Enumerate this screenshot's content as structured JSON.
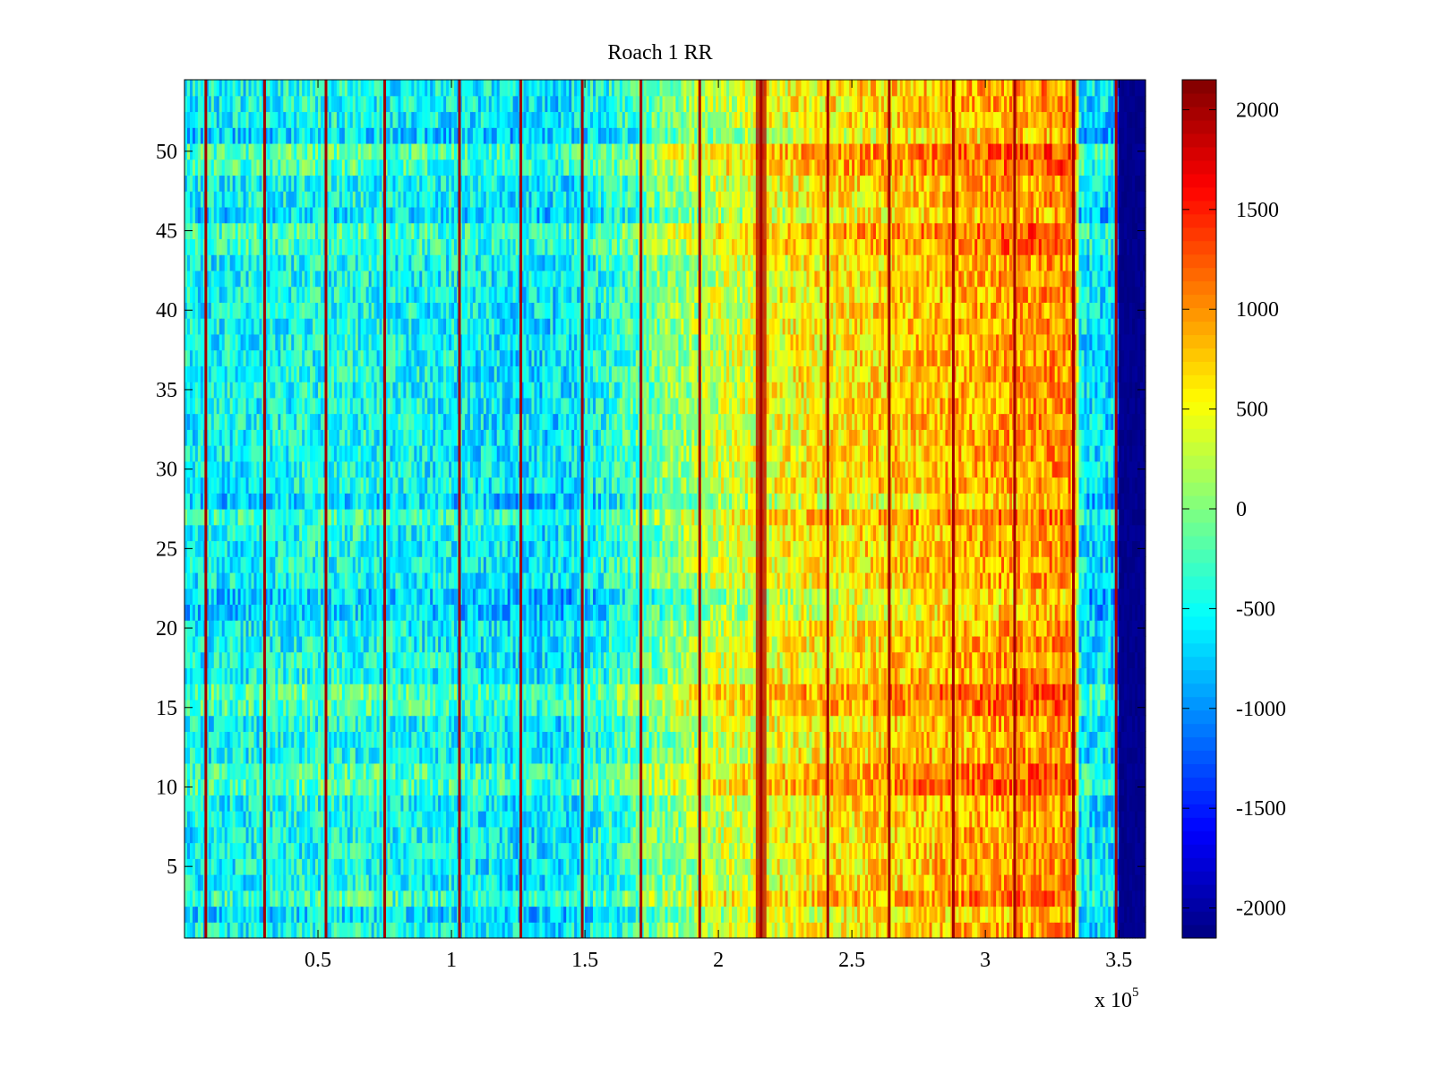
{
  "chart_data": {
    "type": "heatmap",
    "title": "Roach 1 RR",
    "xlabel": "",
    "ylabel": "",
    "x_multiplier_label": "x 10",
    "x_multiplier_exponent": "5",
    "xlim": [
      0,
      3.6
    ],
    "ylim": [
      0.5,
      54.5
    ],
    "x_ticks": [
      0.5,
      1,
      1.5,
      2,
      2.5,
      3,
      3.5
    ],
    "x_tick_labels": [
      "0.5",
      "1",
      "1.5",
      "2",
      "2.5",
      "3",
      "3.5"
    ],
    "y_ticks": [
      5,
      10,
      15,
      20,
      25,
      30,
      35,
      40,
      45,
      50
    ],
    "y_tick_labels": [
      "5",
      "10",
      "15",
      "20",
      "25",
      "30",
      "35",
      "40",
      "45",
      "50"
    ],
    "rows": 54,
    "colormap": "jet",
    "colorbar": {
      "clim": [
        -2150,
        2150
      ],
      "ticks": [
        -2000,
        -1500,
        -1000,
        -500,
        0,
        500,
        1000,
        1500,
        2000
      ],
      "tick_labels": [
        "-2000",
        "-1500",
        "-1000",
        "-500",
        "0",
        "500",
        "1000",
        "1500",
        "2000"
      ],
      "location": "right"
    },
    "column_mean_profile": {
      "x": [
        0,
        0.3,
        0.6,
        0.9,
        1.2,
        1.4,
        1.6,
        1.75,
        2.0,
        2.3,
        2.6,
        2.9,
        3.2,
        3.34,
        3.35,
        3.49,
        3.5,
        3.6
      ],
      "mean": [
        -550,
        -500,
        -450,
        -520,
        -600,
        -650,
        -400,
        -100,
        300,
        550,
        700,
        850,
        1000,
        1000,
        -600,
        -700,
        -2150,
        -2150
      ],
      "noise_amplitude": 450
    },
    "row_offsets": {
      "rows": [
        2,
        3,
        10,
        11,
        15,
        16,
        21,
        22,
        27,
        28,
        44,
        45,
        46,
        49,
        50,
        51
      ],
      "offsets": [
        -150,
        200,
        300,
        250,
        250,
        350,
        -200,
        -250,
        200,
        -200,
        200,
        250,
        -150,
        250,
        300,
        -200
      ]
    },
    "spike_columns": [
      0.08,
      0.3,
      0.53,
      0.75,
      1.03,
      1.26,
      1.49,
      1.71,
      1.93,
      2.16,
      2.41,
      2.64,
      2.88,
      3.11,
      3.33,
      3.49
    ],
    "spike_value": 2000,
    "hot_band": {
      "x_range": [
        2.14,
        2.18
      ],
      "value": 1900
    }
  }
}
